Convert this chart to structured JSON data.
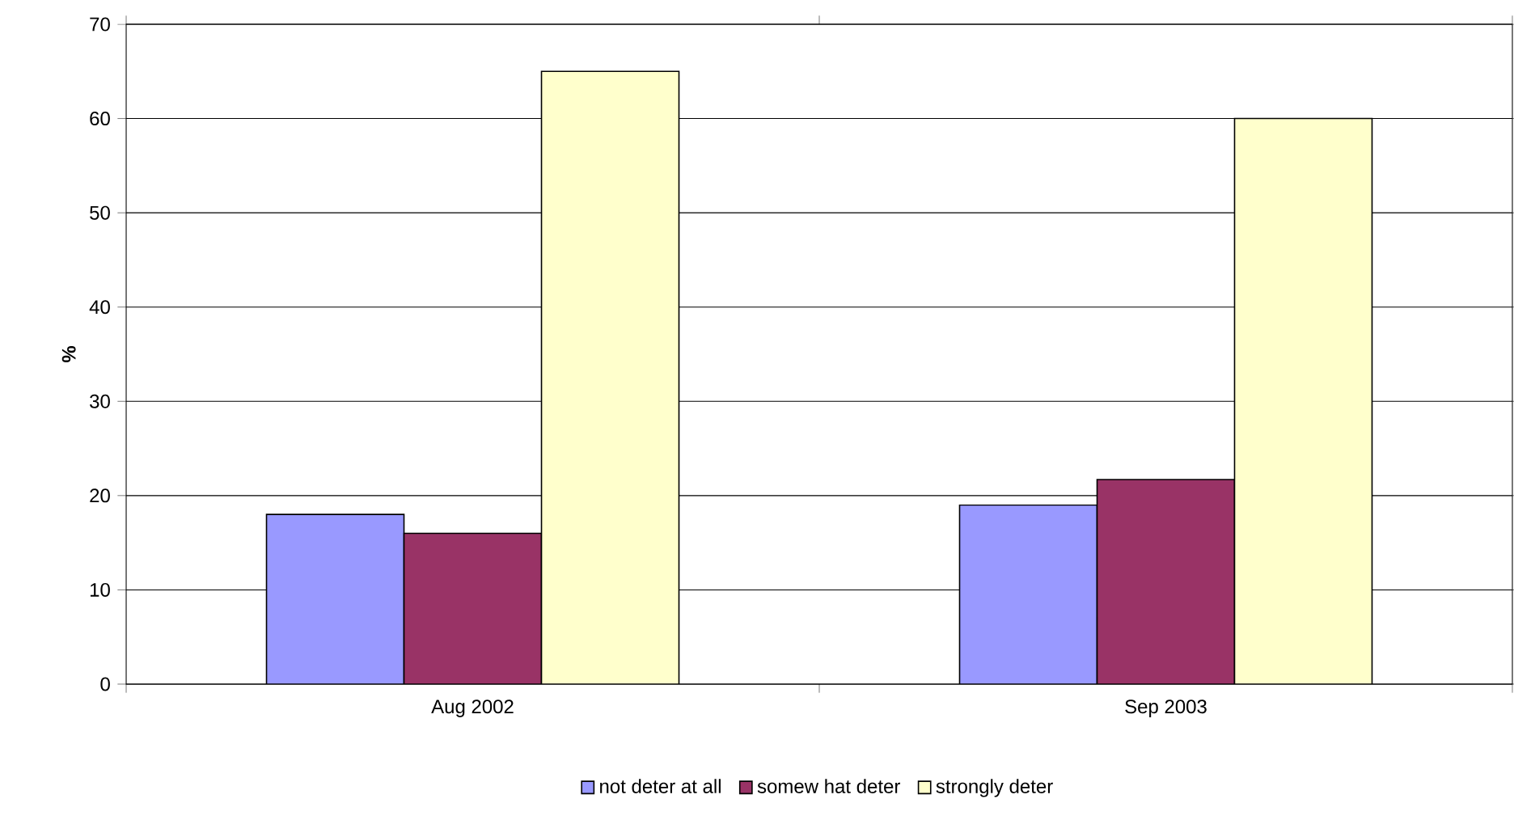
{
  "chart_data": {
    "type": "bar",
    "ylabel": "%",
    "categories": [
      "Aug 2002",
      "Sep 2003"
    ],
    "series": [
      {
        "name": "not deter at all",
        "color": "#9999ff",
        "values": [
          18,
          19
        ]
      },
      {
        "name": "somew hat deter",
        "color": "#993366",
        "values": [
          16,
          21.7
        ]
      },
      {
        "name": "strongly deter",
        "color": "#ffffcc",
        "values": [
          65,
          60
        ]
      }
    ],
    "ylim": [
      0,
      70
    ],
    "yticks": [
      0,
      10,
      20,
      30,
      40,
      50,
      60,
      70
    ],
    "grid": "y",
    "legend": "bottom"
  }
}
